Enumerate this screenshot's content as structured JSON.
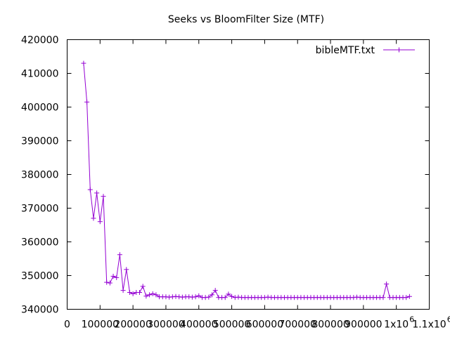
{
  "chart_data": {
    "type": "line",
    "title": "Seeks vs BloomFilter Size (MTF)",
    "xlabel": "",
    "ylabel": "",
    "xlim": [
      0,
      1100000
    ],
    "ylim": [
      340000,
      420000
    ],
    "x_ticks": [
      {
        "value": 0,
        "label": "0"
      },
      {
        "value": 100000,
        "label": "100000"
      },
      {
        "value": 200000,
        "label": "200000"
      },
      {
        "value": 300000,
        "label": "300000"
      },
      {
        "value": 400000,
        "label": "400000"
      },
      {
        "value": 500000,
        "label": "500000"
      },
      {
        "value": 600000,
        "label": "600000"
      },
      {
        "value": 700000,
        "label": "700000"
      },
      {
        "value": 800000,
        "label": "800000"
      },
      {
        "value": 900000,
        "label": "900000"
      },
      {
        "value": 1000000,
        "label": "1x10",
        "sup": "6"
      },
      {
        "value": 1100000,
        "label": "1.1x10",
        "sup": "6"
      }
    ],
    "y_ticks": [
      {
        "value": 340000,
        "label": "340000"
      },
      {
        "value": 350000,
        "label": "350000"
      },
      {
        "value": 360000,
        "label": "360000"
      },
      {
        "value": 370000,
        "label": "370000"
      },
      {
        "value": 380000,
        "label": "380000"
      },
      {
        "value": 390000,
        "label": "390000"
      },
      {
        "value": 400000,
        "label": "400000"
      },
      {
        "value": 410000,
        "label": "410000"
      },
      {
        "value": 420000,
        "label": "420000"
      }
    ],
    "grid": false,
    "legend_position": "top-right",
    "series": [
      {
        "name": "bibleMTF.txt",
        "color": "#9400d3",
        "marker": "plus",
        "x": [
          50000,
          60000,
          70000,
          80000,
          90000,
          100000,
          110000,
          120000,
          130000,
          140000,
          150000,
          160000,
          170000,
          180000,
          190000,
          200000,
          210000,
          220000,
          230000,
          240000,
          250000,
          260000,
          270000,
          280000,
          290000,
          300000,
          310000,
          320000,
          330000,
          340000,
          350000,
          360000,
          370000,
          380000,
          390000,
          400000,
          410000,
          420000,
          430000,
          440000,
          450000,
          460000,
          470000,
          480000,
          490000,
          500000,
          510000,
          520000,
          530000,
          540000,
          550000,
          560000,
          570000,
          580000,
          590000,
          600000,
          610000,
          620000,
          630000,
          640000,
          650000,
          660000,
          670000,
          680000,
          690000,
          700000,
          710000,
          720000,
          730000,
          740000,
          750000,
          760000,
          770000,
          780000,
          790000,
          800000,
          810000,
          820000,
          830000,
          840000,
          850000,
          860000,
          870000,
          880000,
          890000,
          900000,
          910000,
          920000,
          930000,
          940000,
          950000,
          960000,
          970000,
          980000,
          990000,
          1000000,
          1010000,
          1020000,
          1030000,
          1040000
        ],
        "values": [
          413000,
          401500,
          375500,
          367000,
          374500,
          366000,
          373500,
          348000,
          347800,
          349800,
          349400,
          356200,
          345600,
          351800,
          345000,
          344600,
          345000,
          345000,
          346800,
          343900,
          344300,
          344600,
          344300,
          343700,
          343700,
          343700,
          343600,
          343700,
          343800,
          343700,
          343600,
          343700,
          343700,
          343600,
          343700,
          344000,
          343500,
          343500,
          343600,
          344300,
          345600,
          343500,
          343500,
          343500,
          344500,
          343800,
          343500,
          343600,
          343500,
          343500,
          343500,
          343500,
          343500,
          343500,
          343500,
          343500,
          343600,
          343500,
          343500,
          343500,
          343500,
          343500,
          343500,
          343500,
          343500,
          343500,
          343500,
          343500,
          343500,
          343500,
          343500,
          343500,
          343500,
          343500,
          343500,
          343500,
          343500,
          343500,
          343500,
          343500,
          343500,
          343500,
          343500,
          343600,
          343500,
          343500,
          343500,
          343500,
          343500,
          343500,
          343500,
          343500,
          347500,
          343500,
          343500,
          343500,
          343500,
          343500,
          343500,
          343800
        ]
      }
    ]
  }
}
